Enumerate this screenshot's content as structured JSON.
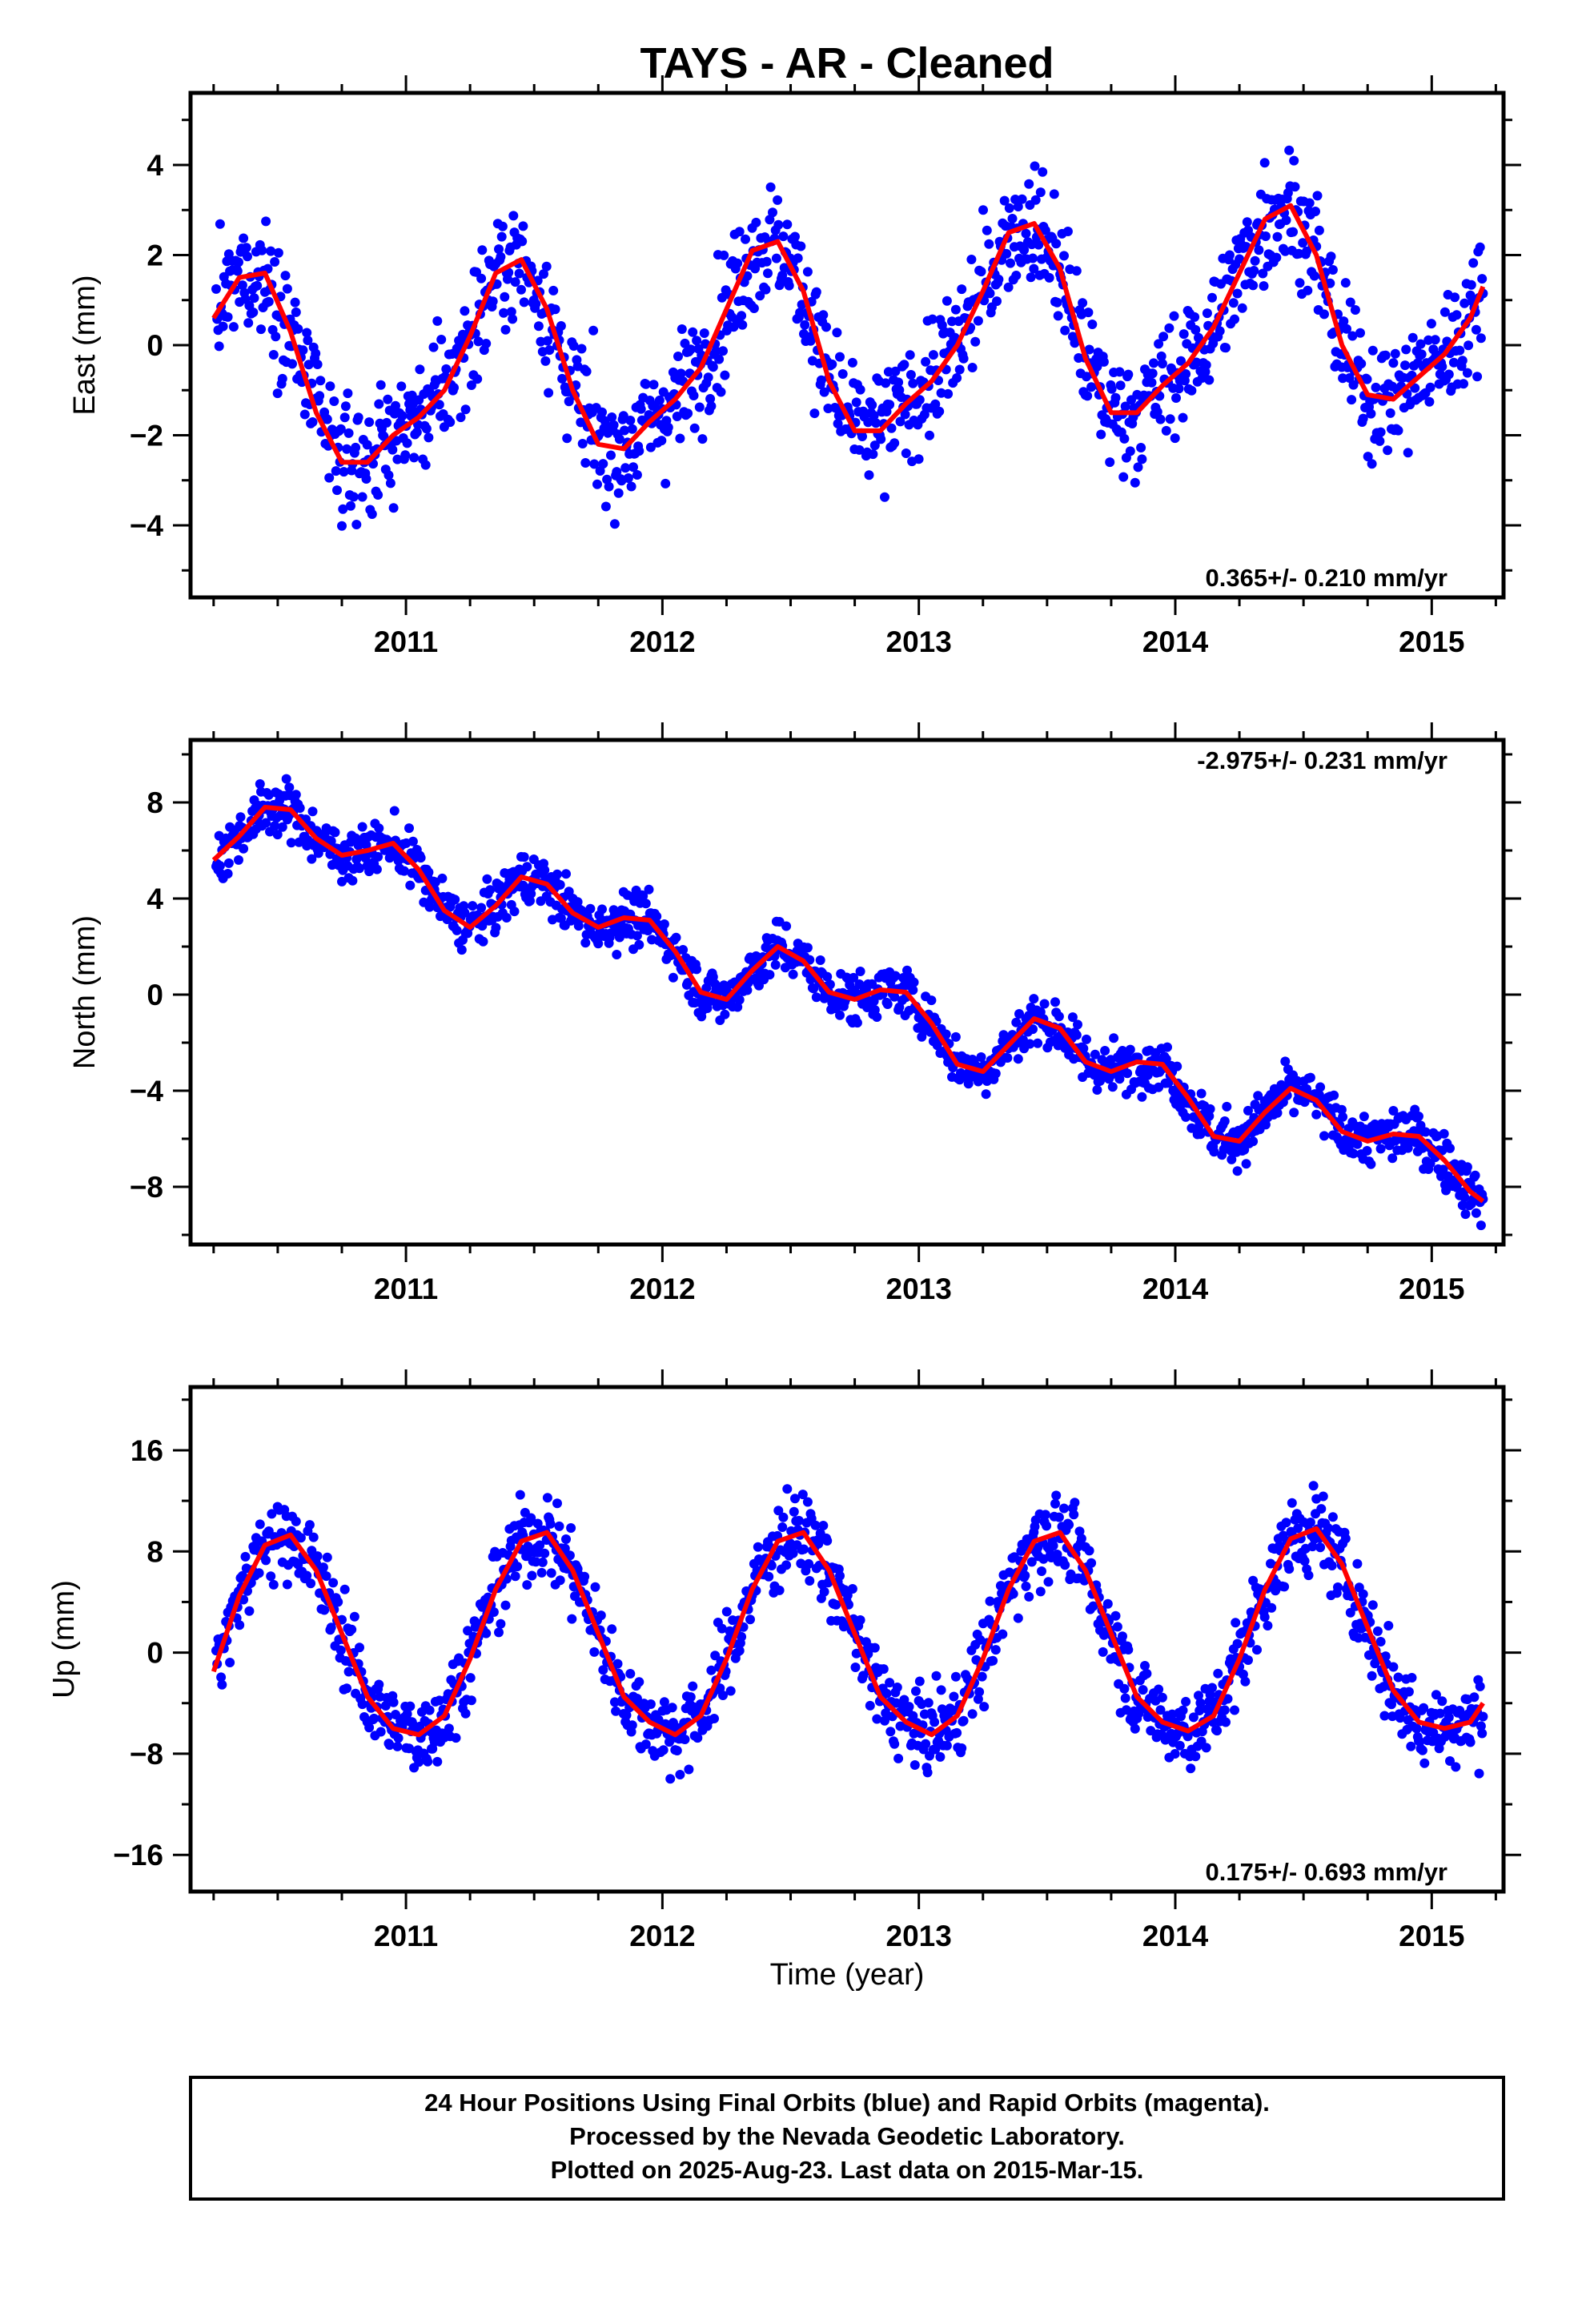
{
  "title": "TAYS  - AR - Cleaned",
  "xlabel": "Time (year)",
  "footer": [
    "24 Hour Positions Using Final Orbits (blue) and Rapid Orbits (magenta).",
    "Processed by the Nevada Geodetic Laboratory.",
    "Plotted on 2025-Aug-23. Last data on 2015-Mar-15."
  ],
  "colors": {
    "points": "#0000ff",
    "fit": "#ff0000",
    "axis": "#000000"
  },
  "chart_data": [
    {
      "type": "scatter",
      "ylabel": "East (mm)",
      "rate": "0.365+/- 0.210 mm/yr",
      "xlim": [
        2010.16,
        2015.28
      ],
      "ylim": [
        -5.6,
        5.6
      ],
      "xticks": [
        "2011",
        "2012",
        "2013",
        "2014",
        "2015"
      ],
      "yticks": [
        "4",
        "2",
        "0",
        "−2",
        "−4"
      ],
      "series": [
        {
          "type": "line",
          "x": [
            2010.25,
            2010.35,
            2010.45,
            2010.55,
            2010.65,
            2010.75,
            2010.85,
            2010.95,
            2011.05,
            2011.15,
            2011.25,
            2011.35,
            2011.45,
            2011.55,
            2011.65,
            2011.75,
            2011.85,
            2011.95,
            2012.05,
            2012.15,
            2012.25,
            2012.35,
            2012.45,
            2012.55,
            2012.65,
            2012.75,
            2012.85,
            2012.95,
            2013.05,
            2013.15,
            2013.25,
            2013.35,
            2013.45,
            2013.55,
            2013.65,
            2013.75,
            2013.85,
            2013.95,
            2014.05,
            2014.15,
            2014.25,
            2014.35,
            2014.45,
            2014.55,
            2014.65,
            2014.75,
            2014.85,
            2014.95,
            2015.05,
            2015.15,
            2015.2
          ],
          "y": [
            0.6,
            1.5,
            1.6,
            0.3,
            -1.5,
            -2.6,
            -2.6,
            -2.0,
            -1.6,
            -1.0,
            0.2,
            1.6,
            1.9,
            0.8,
            -1.0,
            -2.2,
            -2.3,
            -1.7,
            -1.2,
            -0.5,
            0.8,
            2.1,
            2.3,
            1.2,
            -0.8,
            -1.9,
            -1.9,
            -1.3,
            -0.8,
            0.0,
            1.2,
            2.5,
            2.7,
            1.7,
            -0.3,
            -1.5,
            -1.5,
            -0.9,
            -0.4,
            0.4,
            1.6,
            2.8,
            3.1,
            2.0,
            0.0,
            -1.1,
            -1.2,
            -0.7,
            -0.2,
            0.6,
            1.3
          ]
        }
      ]
    },
    {
      "type": "scatter",
      "ylabel": "North (mm)",
      "rate": "-2.975+/- 0.231 mm/yr",
      "xlim": [
        2010.16,
        2015.28
      ],
      "ylim": [
        -10.4,
        10.6
      ],
      "xticks": [
        "2011",
        "2012",
        "2013",
        "2014",
        "2015"
      ],
      "yticks": [
        "8",
        "4",
        "0",
        "−4",
        "−8"
      ],
      "series": [
        {
          "type": "line",
          "x": [
            2010.25,
            2010.35,
            2010.45,
            2010.55,
            2010.65,
            2010.75,
            2010.85,
            2010.95,
            2011.05,
            2011.15,
            2011.25,
            2011.35,
            2011.45,
            2011.55,
            2011.65,
            2011.75,
            2011.85,
            2011.95,
            2012.05,
            2012.15,
            2012.25,
            2012.35,
            2012.45,
            2012.55,
            2012.65,
            2012.75,
            2012.85,
            2012.95,
            2013.05,
            2013.15,
            2013.25,
            2013.35,
            2013.45,
            2013.55,
            2013.65,
            2013.75,
            2013.85,
            2013.95,
            2014.05,
            2014.15,
            2014.25,
            2014.35,
            2014.45,
            2014.55,
            2014.65,
            2014.75,
            2014.85,
            2014.95,
            2015.05,
            2015.15,
            2015.2
          ],
          "y": [
            5.6,
            6.6,
            7.8,
            7.7,
            6.5,
            5.8,
            6.0,
            6.3,
            5.2,
            3.5,
            2.8,
            3.7,
            4.9,
            4.6,
            3.4,
            2.8,
            3.2,
            3.1,
            1.8,
            0.1,
            -0.2,
            1.0,
            2.0,
            1.4,
            0.1,
            -0.2,
            0.2,
            0.1,
            -1.2,
            -2.9,
            -3.2,
            -2.1,
            -1.0,
            -1.4,
            -2.8,
            -3.2,
            -2.8,
            -2.9,
            -4.3,
            -5.9,
            -6.1,
            -4.9,
            -3.9,
            -4.4,
            -5.7,
            -6.1,
            -5.8,
            -5.9,
            -6.9,
            -8.2,
            -8.6
          ]
        }
      ]
    },
    {
      "type": "scatter",
      "ylabel": "Up (mm)",
      "rate": "0.175+/- 0.693 mm/yr",
      "xlim": [
        2010.16,
        2015.28
      ],
      "ylim": [
        -18.9,
        21.0
      ],
      "xticks": [
        "2011",
        "2012",
        "2013",
        "2014",
        "2015"
      ],
      "yticks": [
        "16",
        "8",
        "0",
        "−8",
        "−16"
      ],
      "series": [
        {
          "type": "line",
          "x": [
            2010.25,
            2010.35,
            2010.45,
            2010.55,
            2010.65,
            2010.75,
            2010.85,
            2010.95,
            2011.05,
            2011.15,
            2011.25,
            2011.35,
            2011.45,
            2011.55,
            2011.65,
            2011.75,
            2011.85,
            2011.95,
            2012.05,
            2012.15,
            2012.25,
            2012.35,
            2012.45,
            2012.55,
            2012.65,
            2012.75,
            2012.85,
            2012.95,
            2013.05,
            2013.15,
            2013.25,
            2013.35,
            2013.45,
            2013.55,
            2013.65,
            2013.75,
            2013.85,
            2013.95,
            2014.05,
            2014.15,
            2014.25,
            2014.35,
            2014.45,
            2014.55,
            2014.65,
            2014.75,
            2014.85,
            2014.95,
            2015.05,
            2015.15,
            2015.2
          ],
          "y": [
            -1.5,
            4.5,
            8.5,
            9.3,
            6.5,
            1.5,
            -3.5,
            -6.0,
            -6.5,
            -5.0,
            -0.5,
            5.0,
            8.8,
            9.5,
            6.5,
            1.5,
            -3.5,
            -5.5,
            -6.5,
            -5.0,
            -0.5,
            5.0,
            8.8,
            9.5,
            6.5,
            1.5,
            -3.5,
            -5.5,
            -6.5,
            -5.0,
            -0.5,
            5.0,
            8.8,
            9.5,
            6.5,
            1.5,
            -3.5,
            -5.5,
            -6.2,
            -5.0,
            -0.5,
            5.0,
            9.0,
            9.8,
            7.0,
            2.0,
            -3.0,
            -5.5,
            -6.0,
            -5.5,
            -4.0
          ]
        }
      ]
    }
  ]
}
